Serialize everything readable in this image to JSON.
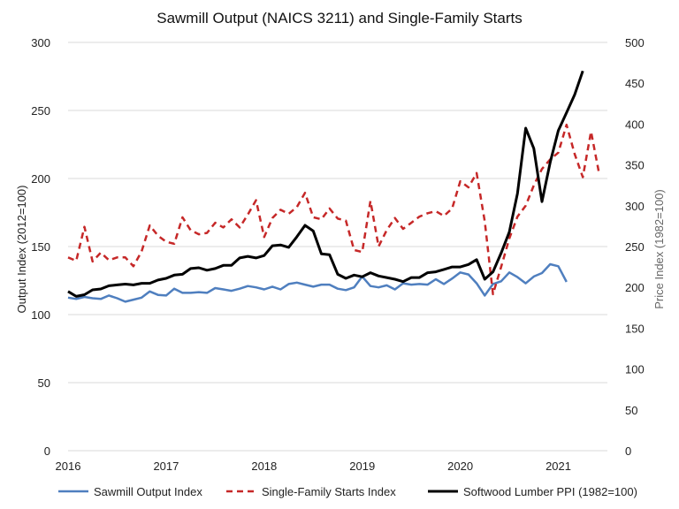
{
  "chart_data": {
    "type": "line",
    "title": "Sawmill Output (NAICS 3211) and Single-Family Starts",
    "ylabel": "Output Index (2012=100)",
    "y2label": "Price Index (1982=100)",
    "x_tick_labels": [
      "2016",
      "2017",
      "2018",
      "2019",
      "2020",
      "2021"
    ],
    "x_range": [
      2016.0,
      2021.5
    ],
    "ylim": [
      0,
      300
    ],
    "y_ticks": [
      0,
      50,
      100,
      150,
      200,
      250,
      300
    ],
    "y2lim": [
      0,
      500
    ],
    "y2_ticks": [
      0,
      50,
      100,
      150,
      200,
      250,
      300,
      350,
      400,
      450,
      500
    ],
    "grid": true,
    "legend_position": "bottom",
    "series": [
      {
        "name": "Sawmill Output Index",
        "axis": "left",
        "color": "#4f7fbf",
        "dash": "solid",
        "x_start": 2016.0,
        "step": 0.08333,
        "values": [
          112.5,
          111.5,
          113,
          112,
          111.5,
          114,
          112,
          109.5,
          111,
          112.5,
          117,
          114.5,
          114,
          119,
          116,
          116,
          116.5,
          116,
          119.5,
          118.5,
          117.5,
          119,
          121,
          120,
          118.5,
          120.5,
          118.5,
          122.5,
          123.5,
          122,
          120.5,
          122,
          122,
          119,
          118,
          120,
          128,
          121,
          120,
          121.5,
          118.5,
          123,
          122,
          122.5,
          122,
          126,
          122.5,
          126.5,
          131,
          129.5,
          123,
          114,
          122.5,
          124.5,
          131,
          127.5,
          123,
          128,
          130.5,
          137,
          135.5,
          124
        ]
      },
      {
        "name": "Single-Family Starts Index",
        "axis": "left",
        "color": "#c62828",
        "dash": "dashed",
        "x_start": 2016.0,
        "step": 0.08333,
        "values": [
          142,
          139.5,
          164.5,
          139,
          145.5,
          140,
          142,
          142,
          135.5,
          146.5,
          165.5,
          158,
          153.5,
          152,
          171.5,
          162,
          159,
          160,
          167.5,
          164,
          170,
          164,
          173.5,
          184,
          157,
          171,
          177,
          174,
          179,
          189.5,
          171.5,
          170,
          178,
          170.5,
          169,
          147.5,
          146,
          183.5,
          150,
          162,
          171,
          163,
          167.5,
          172,
          174.5,
          176,
          172.5,
          178,
          198,
          193.5,
          204,
          168.5,
          115,
          135,
          156,
          172,
          180,
          195,
          207,
          214,
          219,
          239.5,
          218,
          201,
          234.5,
          203.5
        ]
      },
      {
        "name": "Softwood Lumber PPI (1982=100)",
        "axis": "right",
        "color": "#000000",
        "dash": "solid",
        "x_start": 2016.0,
        "step": 0.08333,
        "values": [
          195,
          189,
          191,
          197,
          198,
          202,
          203,
          204,
          203,
          205,
          205,
          209,
          211,
          215,
          216,
          223,
          224,
          221,
          223,
          227,
          227,
          236,
          238,
          236,
          239,
          251,
          252,
          249,
          262,
          276,
          269,
          241,
          240,
          216,
          211,
          215,
          213,
          218,
          214,
          212,
          210,
          207,
          212,
          212,
          218,
          219,
          222,
          225,
          225,
          228,
          234,
          210,
          219,
          242,
          268,
          315,
          395,
          370,
          305,
          353,
          392,
          414,
          436,
          465
        ]
      }
    ]
  }
}
